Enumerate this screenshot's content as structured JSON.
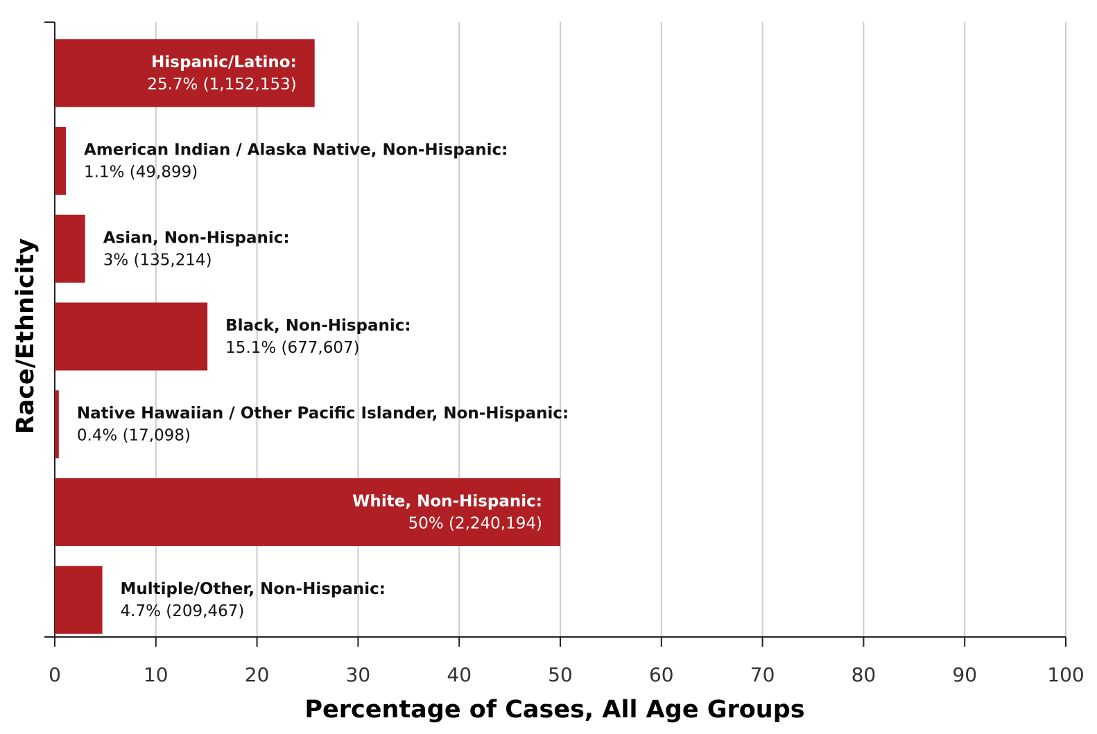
{
  "chart_data": {
    "type": "barh",
    "xlabel": "Percentage of Cases, All Age Groups",
    "ylabel": "Race/Ethnicity",
    "categories": [
      "Hispanic/Latino:",
      "American Indian / Alaska Native, Non-Hispanic:",
      "Asian, Non-Hispanic:",
      "Black, Non-Hispanic:",
      "Native Hawaiian / Other Pacific Islander, Non-Hispanic:",
      "White, Non-Hispanic:",
      "Multiple/Other, Non-Hispanic:"
    ],
    "values": [
      25.7,
      1.1,
      3,
      15.1,
      0.4,
      50,
      4.7
    ],
    "value_labels": [
      "25.7% (1,152,153)",
      "1.1% (49,899)",
      "3% (135,214)",
      "15.1% (677,607)",
      "0.4% (17,098)",
      "50% (2,240,194)",
      "4.7% (209,467)"
    ],
    "color": "#b01f24",
    "xlim": [
      0,
      100
    ],
    "xticks": [
      0,
      10,
      20,
      30,
      40,
      50,
      60,
      70,
      80,
      90,
      100
    ],
    "grid": true
  }
}
